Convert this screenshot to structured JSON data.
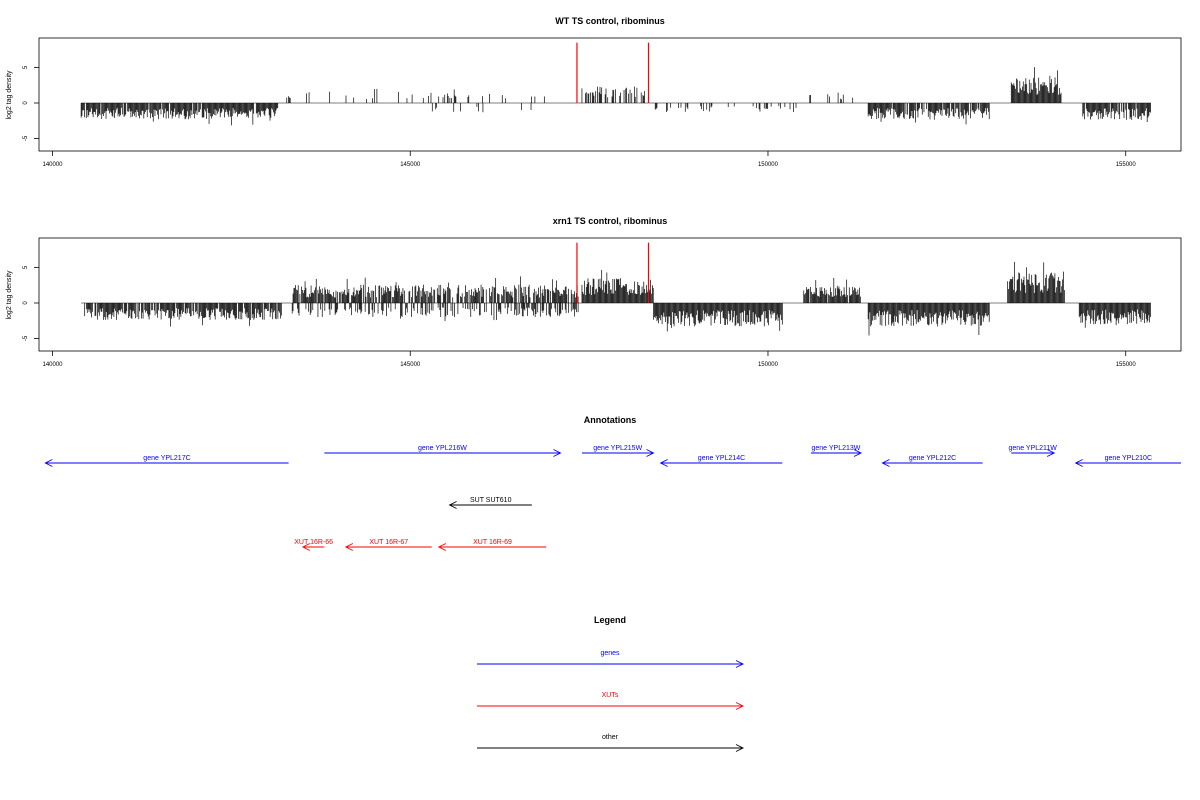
{
  "chart_data": [
    {
      "type": "bar",
      "title": "WT TS control, ribominus",
      "ylabel": "log2 tag density",
      "xlim": [
        140000,
        155500
      ],
      "ylim": [
        -7,
        9
      ],
      "x_ticks": [
        140000,
        145000,
        150000,
        155000
      ],
      "y_ticks": [
        -5,
        0,
        5
      ],
      "x_tick_labels": [
        "140000",
        "145000",
        "150000",
        "155000"
      ],
      "y_tick_labels": [
        "-5",
        "0",
        "5"
      ],
      "marker_color": "#ff0000",
      "markers_x": [
        147330,
        148330
      ],
      "marker_height": 8.5,
      "bar_color": "#000000",
      "segments": [
        {
          "start": 140400,
          "end": 143150,
          "amp": 2.3,
          "sign": -1,
          "density": 0.95,
          "seed": 11
        },
        {
          "start": 143250,
          "end": 146900,
          "amp": 1.6,
          "sign": 1,
          "density": 0.12,
          "seed": 12
        },
        {
          "start": 145200,
          "end": 146900,
          "amp": 1.3,
          "sign": -1,
          "density": 0.08,
          "seed": 13
        },
        {
          "start": 147400,
          "end": 148300,
          "amp": 2.4,
          "sign": 1,
          "density": 0.35,
          "seed": 14
        },
        {
          "start": 148400,
          "end": 150400,
          "amp": 1.3,
          "sign": -1,
          "density": 0.12,
          "seed": 15
        },
        {
          "start": 150500,
          "end": 151300,
          "amp": 1.6,
          "sign": 1,
          "density": 0.1,
          "seed": 16
        },
        {
          "start": 151400,
          "end": 153100,
          "amp": 2.3,
          "sign": -1,
          "density": 0.85,
          "seed": 17
        },
        {
          "start": 153400,
          "end": 154100,
          "amp": 3.6,
          "sign": 1,
          "density": 1.0,
          "seed": 18
        },
        {
          "start": 154400,
          "end": 155350,
          "amp": 2.4,
          "sign": -1,
          "density": 0.95,
          "seed": 19
        }
      ]
    },
    {
      "type": "bar",
      "title": "xrn1 TS control, ribominus",
      "ylabel": "log2 tag density",
      "xlim": [
        140000,
        155500
      ],
      "ylim": [
        -7,
        9
      ],
      "x_ticks": [
        140000,
        145000,
        150000,
        155000
      ],
      "y_ticks": [
        -5,
        0,
        5
      ],
      "x_tick_labels": [
        "140000",
        "145000",
        "150000",
        "155000"
      ],
      "y_tick_labels": [
        "-5",
        "0",
        "5"
      ],
      "marker_color": "#ff0000",
      "markers_x": [
        147330,
        148330
      ],
      "marker_height": 8.5,
      "bar_color": "#000000",
      "segments": [
        {
          "start": 140450,
          "end": 143200,
          "amp": 2.4,
          "sign": -1,
          "density": 0.9,
          "seed": 21
        },
        {
          "start": 143350,
          "end": 147350,
          "amp": 2.6,
          "sign": 1,
          "density": 0.75,
          "seed": 22
        },
        {
          "start": 143350,
          "end": 147350,
          "amp": 2.0,
          "sign": -1,
          "density": 0.4,
          "seed": 23
        },
        {
          "start": 147400,
          "end": 148400,
          "amp": 3.5,
          "sign": 1,
          "density": 1.0,
          "seed": 24
        },
        {
          "start": 148400,
          "end": 150200,
          "amp": 3.3,
          "sign": -1,
          "density": 1.0,
          "seed": 25
        },
        {
          "start": 150500,
          "end": 151300,
          "amp": 2.5,
          "sign": 1,
          "density": 0.95,
          "seed": 26
        },
        {
          "start": 151400,
          "end": 153100,
          "amp": 3.3,
          "sign": -1,
          "density": 1.0,
          "seed": 27
        },
        {
          "start": 153350,
          "end": 154150,
          "amp": 4.5,
          "sign": 1,
          "density": 1.0,
          "seed": 28
        },
        {
          "start": 154350,
          "end": 155350,
          "amp": 3.0,
          "sign": -1,
          "density": 1.0,
          "seed": 29
        }
      ]
    }
  ],
  "annotations": {
    "title": "Annotations",
    "items": [
      {
        "label": "gene YPL217C",
        "start": 139900,
        "end": 143300,
        "dir": "left",
        "row": 1,
        "color": "#0000ff"
      },
      {
        "label": "gene YPL216W",
        "start": 143800,
        "end": 147100,
        "dir": "right",
        "row": 0,
        "color": "#0000ff"
      },
      {
        "label": "gene YPL215W",
        "start": 147400,
        "end": 148400,
        "dir": "right",
        "row": 0,
        "color": "#0000ff"
      },
      {
        "label": "gene YPL214C",
        "start": 148500,
        "end": 150200,
        "dir": "left",
        "row": 1,
        "color": "#0000ff"
      },
      {
        "label": "gene YPL213W",
        "start": 150600,
        "end": 151300,
        "dir": "right",
        "row": 0,
        "color": "#0000ff"
      },
      {
        "label": "gene YPL212C",
        "start": 151600,
        "end": 153000,
        "dir": "left",
        "row": 1,
        "color": "#0000ff"
      },
      {
        "label": "gene YPL211W",
        "start": 153400,
        "end": 154000,
        "dir": "right",
        "row": 0,
        "color": "#0000ff"
      },
      {
        "label": "gene YPL210C",
        "start": 154300,
        "end": 156200,
        "dir": "left",
        "row": 1,
        "color": "#0000ff"
      },
      {
        "label": "SUT SUT610",
        "start": 145550,
        "end": 146700,
        "dir": "left",
        "row": 2,
        "color": "#000000"
      },
      {
        "label": "XUT 16R-66",
        "start": 143500,
        "end": 143800,
        "dir": "left",
        "row": 3,
        "color": "#ff0000"
      },
      {
        "label": "XUT 16R-67",
        "start": 144100,
        "end": 145300,
        "dir": "left",
        "row": 3,
        "color": "#ff0000"
      },
      {
        "label": "XUT 16R-69",
        "start": 145400,
        "end": 146900,
        "dir": "left",
        "row": 3,
        "color": "#ff0000"
      }
    ]
  },
  "legend": {
    "title": "Legend",
    "items": [
      {
        "label": "genes",
        "color": "#0000ff"
      },
      {
        "label": "XUTs",
        "color": "#ff0000"
      },
      {
        "label": "other",
        "color": "#000000"
      }
    ]
  }
}
